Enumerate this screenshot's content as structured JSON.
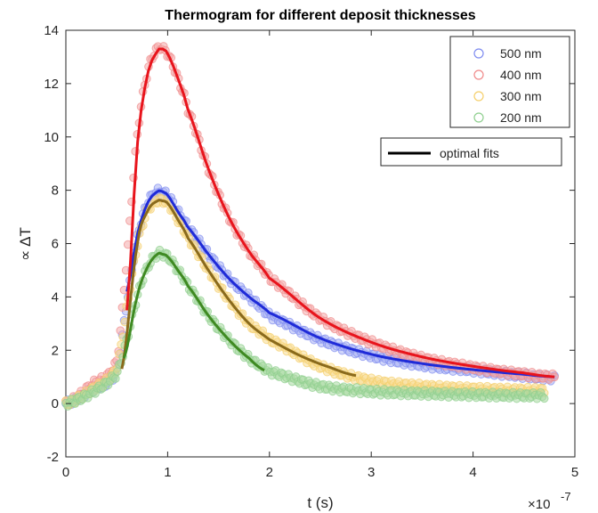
{
  "chart_data": {
    "type": "scatter",
    "title": "Thermogram for different deposit thicknesses",
    "xlabel": "t (s)",
    "ylabel": "∝ ΔT",
    "x_multiplier": "×10",
    "x_exponent": "-7",
    "xlim": [
      0,
      5
    ],
    "ylim": [
      -2,
      14
    ],
    "xticks": [
      "0",
      "1",
      "2",
      "3",
      "4",
      "5"
    ],
    "yticks": [
      "-2",
      "0",
      "2",
      "4",
      "6",
      "8",
      "10",
      "12",
      "14"
    ],
    "grid": false,
    "legend_position": "top-right",
    "series": [
      {
        "name": "500 nm",
        "marker_color": "#7f8cf0",
        "fill_color": "#aab2f4",
        "x": [
          0.0,
          0.25,
          0.5,
          0.6,
          0.7,
          0.8,
          0.9,
          0.95,
          1.0,
          1.1,
          1.2,
          1.4,
          1.6,
          1.8,
          2.0,
          2.5,
          3.0,
          3.5,
          4.0,
          4.5,
          4.8
        ],
        "y": [
          0.0,
          0.5,
          1.2,
          3.8,
          6.2,
          7.5,
          7.95,
          7.9,
          7.8,
          7.2,
          6.6,
          5.6,
          4.7,
          4.0,
          3.3,
          2.4,
          1.8,
          1.45,
          1.25,
          1.05,
          0.95
        ]
      },
      {
        "name": "400 nm",
        "marker_color": "#f08a8a",
        "fill_color": "#f4a9a9",
        "x": [
          0.0,
          0.25,
          0.5,
          0.6,
          0.7,
          0.8,
          0.9,
          0.95,
          1.0,
          1.1,
          1.2,
          1.4,
          1.6,
          1.8,
          2.0,
          2.5,
          3.0,
          3.5,
          4.0,
          4.5,
          4.8
        ],
        "y": [
          0.0,
          0.7,
          1.6,
          5.5,
          10.0,
          12.4,
          13.3,
          13.3,
          13.1,
          12.2,
          11.0,
          8.8,
          7.0,
          5.7,
          4.7,
          3.2,
          2.3,
          1.7,
          1.35,
          1.1,
          1.0
        ]
      },
      {
        "name": "300 nm",
        "marker_color": "#f5cf6b",
        "fill_color": "#f8dc93",
        "x": [
          0.0,
          0.25,
          0.5,
          0.6,
          0.7,
          0.8,
          0.9,
          0.95,
          1.0,
          1.1,
          1.2,
          1.4,
          1.6,
          1.8,
          2.0,
          2.5,
          3.0,
          3.5,
          4.0,
          4.5,
          4.7
        ],
        "y": [
          0.0,
          0.5,
          1.3,
          3.6,
          5.9,
          7.2,
          7.6,
          7.6,
          7.5,
          6.9,
          6.2,
          5.0,
          3.9,
          3.0,
          2.4,
          1.4,
          0.85,
          0.65,
          0.55,
          0.5,
          0.5
        ]
      },
      {
        "name": "200 nm",
        "marker_color": "#8fcf8f",
        "fill_color": "#a8d8a0",
        "x": [
          0.0,
          0.25,
          0.5,
          0.6,
          0.7,
          0.8,
          0.9,
          0.95,
          1.0,
          1.1,
          1.2,
          1.4,
          1.6,
          1.8,
          2.0,
          2.5,
          3.0,
          3.5,
          4.0,
          4.5,
          4.7
        ],
        "y": [
          0.0,
          0.4,
          1.1,
          2.4,
          4.0,
          5.1,
          5.6,
          5.6,
          5.5,
          5.0,
          4.4,
          3.3,
          2.4,
          1.7,
          1.2,
          0.65,
          0.45,
          0.38,
          0.33,
          0.3,
          0.3
        ]
      }
    ],
    "fits": [
      {
        "series": "500 nm",
        "color": "#1f2bd8",
        "x": [
          0.6,
          0.7,
          0.8,
          0.9,
          0.95,
          1.0,
          1.1,
          1.2,
          1.4,
          1.6,
          1.8,
          2.0,
          2.5,
          3.0,
          3.5,
          4.0,
          4.5,
          4.8
        ],
        "y": [
          4.2,
          6.3,
          7.5,
          7.95,
          7.95,
          7.8,
          7.2,
          6.6,
          5.6,
          4.7,
          4.0,
          3.4,
          2.45,
          1.85,
          1.5,
          1.27,
          1.1,
          1.0
        ]
      },
      {
        "series": "400 nm",
        "color": "#e8141c",
        "x": [
          0.6,
          0.7,
          0.8,
          0.9,
          0.95,
          1.0,
          1.1,
          1.2,
          1.4,
          1.6,
          1.8,
          2.0,
          2.5,
          3.0,
          3.5,
          4.0,
          4.5,
          4.8
        ],
        "y": [
          3.5,
          9.6,
          12.3,
          13.2,
          13.3,
          13.1,
          12.2,
          11.0,
          8.8,
          7.0,
          5.7,
          4.7,
          3.2,
          2.3,
          1.75,
          1.4,
          1.15,
          1.0
        ]
      },
      {
        "series": "300 nm",
        "color": "#8a6a1c",
        "x": [
          0.55,
          0.7,
          0.8,
          0.9,
          0.95,
          1.0,
          1.1,
          1.2,
          1.4,
          1.6,
          1.8,
          2.0,
          2.3,
          2.6,
          2.85
        ],
        "y": [
          1.3,
          5.9,
          7.2,
          7.6,
          7.6,
          7.5,
          6.9,
          6.2,
          5.0,
          3.9,
          3.0,
          2.4,
          1.8,
          1.35,
          1.05
        ]
      },
      {
        "series": "200 nm",
        "color": "#3f8a22",
        "x": [
          0.57,
          0.7,
          0.8,
          0.9,
          0.95,
          1.0,
          1.1,
          1.2,
          1.4,
          1.6,
          1.8,
          1.95
        ],
        "y": [
          1.7,
          4.0,
          5.1,
          5.6,
          5.6,
          5.5,
          5.0,
          4.4,
          3.3,
          2.4,
          1.7,
          1.25
        ]
      }
    ],
    "fit_legend_label": "optimal fits"
  }
}
